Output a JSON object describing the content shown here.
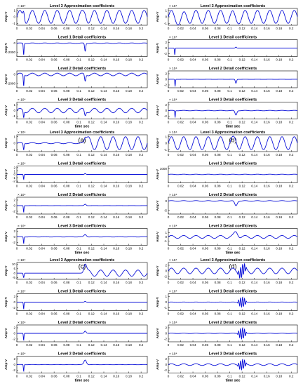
{
  "chart_data": [
    {
      "type": "line",
      "figure_label": "(a)",
      "xlabel": "time sec",
      "xlim": [
        0,
        0.21
      ],
      "xticks": [
        "0",
        "0.02",
        "0.04",
        "0.06",
        "0.08",
        "0.1",
        "0.12",
        "0.14",
        "0.16",
        "0.18",
        "0.2"
      ],
      "panels": [
        {
          "title": "Level 3 Approximation coefficients",
          "ylabel": "Amp-V",
          "exp": "× 10⁴",
          "yticks": [
            "1",
            "0",
            "-1"
          ],
          "ylim": [
            -1.3,
            1.3
          ],
          "series": [
            {
              "amp": 1.0,
              "cycles": 10.5,
              "offset": 0,
              "disturbances": [
                {
                  "t": 0.011,
                  "amp": 1.1,
                  "width": 0.0012
                },
                {
                  "t": 0.11,
                  "amp": 0.4,
                  "width": 0.002
                }
              ],
              "settle": null
            }
          ]
        },
        {
          "title": "Level 1 Detail coefficients",
          "ylabel": "Amp-V",
          "exp": "",
          "yticks": [
            "0",
            "-2000"
          ],
          "ylim": [
            -3000,
            800
          ],
          "series": [
            {
              "amp": 60,
              "cycles": 10.5,
              "offset": 0,
              "disturbances": [
                {
                  "t": 0.011,
                  "amp": -2600,
                  "width": 0.0006
                },
                {
                  "t": 0.11,
                  "amp": -1800,
                  "width": 0.0009
                }
              ],
              "settle": null
            }
          ]
        },
        {
          "title": "Level 2 Detail coefficients",
          "ylabel": "Amp-V",
          "exp": "",
          "yticks": [
            "0",
            "-2000"
          ],
          "ylim": [
            -3000,
            800
          ],
          "series": [
            {
              "amp": 300,
              "cycles": 10.5,
              "offset": 0,
              "disturbances": [
                {
                  "t": 0.011,
                  "amp": -2500,
                  "width": 0.0006
                },
                {
                  "t": 0.11,
                  "amp": -1500,
                  "width": 0.001
                }
              ],
              "settle": null
            }
          ]
        },
        {
          "title": "Level 3 Detail coefficients",
          "ylabel": "Amp-V",
          "exp": "× 10⁴",
          "yticks": [
            "1",
            "0",
            "-1"
          ],
          "ylim": [
            -1.5,
            1.5
          ],
          "series": [
            {
              "amp": 0.4,
              "cycles": 10.5,
              "offset": 0,
              "disturbances": [
                {
                  "t": 0.011,
                  "amp": -1.1,
                  "width": 0.0007
                },
                {
                  "t": 0.11,
                  "amp": -0.9,
                  "width": 0.0012
                }
              ],
              "settle": null
            }
          ]
        }
      ]
    },
    {
      "type": "line",
      "figure_label": "(b)",
      "xlabel": "time sec",
      "xlim": [
        0,
        0.21
      ],
      "xticks": [
        "0",
        "0.02",
        "0.04",
        "0.06",
        "0.08",
        "0.1",
        "0.12",
        "0.14",
        "0.16",
        "0.18",
        "0.2"
      ],
      "panels": [
        {
          "title": "Level 3 Approximation coefficients",
          "ylabel": "Amp-V",
          "exp": "× 10⁴",
          "yticks": [
            "1",
            "0",
            "-1"
          ],
          "ylim": [
            -1.3,
            1.3
          ],
          "series": [
            {
              "amp": 1.0,
              "cycles": 10.5,
              "offset": 0,
              "disturbances": [
                {
                  "t": 0.02,
                  "amp": -0.5,
                  "width": 0.004
                },
                {
                  "t": 0.11,
                  "amp": -0.3,
                  "width": 0.003
                }
              ],
              "settle": null
            }
          ]
        },
        {
          "title": "Level 1 Detail coefficients",
          "ylabel": "Amp-V",
          "exp": "× 10⁴",
          "yticks": [
            "2",
            "0",
            "-2"
          ],
          "ylim": [
            -3,
            3
          ],
          "series": [
            {
              "amp": 0.0,
              "cycles": 10.5,
              "offset": 0,
              "disturbances": [
                {
                  "t": 0.0105,
                  "amp": -2.4,
                  "width": 0.0005
                },
                {
                  "t": 0.11,
                  "amp": 0.35,
                  "width": 0.001
                }
              ],
              "settle": null
            }
          ]
        },
        {
          "title": "Level 2 Detail coefficients",
          "ylabel": "Amp-V",
          "exp": "× 10⁴",
          "yticks": [
            "2",
            "0",
            "-2"
          ],
          "ylim": [
            -3,
            3
          ],
          "series": [
            {
              "amp": 0.02,
              "cycles": 10.5,
              "offset": 0,
              "disturbances": [
                {
                  "t": 0.011,
                  "amp": -2.4,
                  "width": 0.0005
                },
                {
                  "t": 0.11,
                  "amp": -1.4,
                  "width": 0.001
                }
              ],
              "settle": null
            }
          ]
        },
        {
          "title": "Level 3 Detail coefficients",
          "ylabel": "Amp-V",
          "exp": "× 10⁴",
          "yticks": [
            "2",
            "0",
            "-2"
          ],
          "ylim": [
            -3,
            3
          ],
          "series": [
            {
              "amp": 0.08,
              "cycles": 10.5,
              "offset": 0,
              "disturbances": [
                {
                  "t": 0.011,
                  "amp": -2.3,
                  "width": 0.0005
                },
                {
                  "t": 0.11,
                  "amp": -1.6,
                  "width": 0.0015
                }
              ],
              "settle": null
            }
          ]
        }
      ]
    },
    {
      "type": "line",
      "figure_label": "(c)",
      "xlabel": "time sec",
      "xlim": [
        0,
        0.21
      ],
      "xticks": [
        "0",
        "0.02",
        "0.04",
        "0.06",
        "0.08",
        "0.1",
        "0.12",
        "0.14",
        "0.16",
        "0.18",
        "0.2"
      ],
      "panels": [
        {
          "title": "Level 3 Approximation coefficients",
          "ylabel": "Amp-V",
          "exp": "× 10⁴",
          "yticks": [
            "1",
            "0",
            "-1"
          ],
          "ylim": [
            -1.3,
            1.3
          ],
          "series": [
            {
              "amp": 0.08,
              "cycles": 10.5,
              "offset": 0,
              "disturbances": [
                {
                  "t": 0.011,
                  "amp": -1.0,
                  "width": 0.0007
                },
                {
                  "t": 0.11,
                  "amp": 0.8,
                  "width": 0.0015
                }
              ],
              "settle": {
                "start": 0.11,
                "amp": 1.0
              }
            }
          ]
        },
        {
          "title": "Level 1 Detail coefficients",
          "ylabel": "Amp-V",
          "exp": "× 10⁴",
          "yticks": [
            "2",
            "1",
            "0",
            "-1",
            "-2"
          ],
          "ylim": [
            -2.5,
            2.5
          ],
          "series": [
            {
              "amp": 0.0,
              "cycles": 10.5,
              "offset": 0,
              "disturbances": [
                {
                  "t": 0.011,
                  "amp": -1.5,
                  "width": 0.0005
                },
                {
                  "t": 0.11,
                  "amp": 0.25,
                  "width": 0.001
                }
              ],
              "settle": null
            }
          ]
        },
        {
          "title": "Level 2 Detail coefficients",
          "ylabel": "Amp-V",
          "exp": "× 10⁴",
          "yticks": [
            "2",
            "0",
            "-2"
          ],
          "ylim": [
            -3,
            3
          ],
          "series": [
            {
              "amp": 0.02,
              "cycles": 10.5,
              "offset": 0,
              "disturbances": [
                {
                  "t": 0.011,
                  "amp": -2.3,
                  "width": 0.0005
                },
                {
                  "t": 0.11,
                  "amp": 0.5,
                  "width": 0.0015
                }
              ],
              "settle": null
            }
          ]
        },
        {
          "title": "Level 3 Detail coefficients",
          "ylabel": "Amp-V",
          "exp": "× 10⁴",
          "yticks": [
            "2",
            "0",
            "-2"
          ],
          "ylim": [
            -3,
            3
          ],
          "series": [
            {
              "amp": 0.05,
              "cycles": 10.5,
              "offset": 0,
              "disturbances": [
                {
                  "t": 0.011,
                  "amp": -2.3,
                  "width": 0.0005
                },
                {
                  "t": 0.11,
                  "amp": 0.8,
                  "width": 0.002
                }
              ],
              "settle": null
            }
          ]
        }
      ]
    },
    {
      "type": "line",
      "figure_label": "(d)",
      "xlabel": "time sec",
      "xlim": [
        0,
        0.21
      ],
      "xticks": [
        "0",
        "0.02",
        "0.04",
        "0.06",
        "0.08",
        "0.1",
        "0.12",
        "0.14",
        "0.16",
        "0.18",
        "0.2"
      ],
      "panels": [
        {
          "title": "Level 3 Approximation coefficients",
          "ylabel": "Amp-V",
          "exp": "× 10⁴",
          "yticks": [
            "1",
            "0",
            "-1"
          ],
          "ylim": [
            -1.3,
            1.3
          ],
          "series": [
            {
              "amp": 1.0,
              "cycles": 10.5,
              "offset": 0,
              "disturbances": [
                {
                  "t": 0.11,
                  "amp": 0.3,
                  "width": 0.003
                }
              ],
              "settle": null
            }
          ]
        },
        {
          "title": "Level 1 Detail coefficients",
          "ylabel": "Amp-V",
          "exp": "",
          "yticks": [
            "1000"
          ],
          "ylim": [
            -1500,
            1500
          ],
          "series": [
            {
              "amp": 40,
              "cycles": 10.5,
              "offset": 0,
              "disturbances": [],
              "settle": null
            }
          ]
        },
        {
          "title": "Level 2 Detail coefficients",
          "ylabel": "Amp-V",
          "exp": "× 10⁴",
          "yticks": [
            "0",
            "-5"
          ],
          "ylim": [
            -7,
            2
          ],
          "series": [
            {
              "amp": 0.2,
              "cycles": 10.5,
              "offset": 0,
              "disturbances": [
                {
                  "t": 0.11,
                  "amp": -2.5,
                  "width": 0.002
                }
              ],
              "settle": null
            }
          ]
        },
        {
          "title": "Level 3 Detail coefficients",
          "ylabel": "Amp-V",
          "exp": "× 10⁴",
          "yticks": [
            "1",
            "0",
            "-1"
          ],
          "ylim": [
            -2,
            2
          ],
          "series": [
            {
              "amp": 0.35,
              "cycles": 10.5,
              "offset": 0,
              "disturbances": [
                {
                  "t": 0.11,
                  "amp": 1.2,
                  "width": 0.003
                }
              ],
              "settle": null
            }
          ]
        }
      ]
    },
    {
      "type": "line",
      "figure_label": "(e)",
      "xlabel": "time sec",
      "xlim": [
        0,
        0.21
      ],
      "xticks": [
        "0",
        "0.02",
        "0.04",
        "0.06",
        "0.08",
        "0.1",
        "0.12",
        "0.14",
        "0.16",
        "0.18",
        "0.2"
      ],
      "panels": [
        {
          "title": "Level 3 Approximation coefficients",
          "ylabel": "Amp-V",
          "exp": "× 10⁴",
          "yticks": [
            "10",
            "5",
            "0",
            "-5"
          ],
          "ylim": [
            -7,
            12
          ],
          "series": [
            {
              "amp": 0.0,
              "cycles": 10.5,
              "offset": 0,
              "disturbances": [
                {
                  "t": 0.011,
                  "amp": -5,
                  "width": 0.0007
                },
                {
                  "t": 0.11,
                  "amp": 10,
                  "width": 0.002
                }
              ],
              "settle": {
                "start": 0.11,
                "amp": 3.5
              }
            }
          ]
        },
        {
          "title": "Level 1 Detail coefficients",
          "ylabel": "Amp-V",
          "exp": "× 10⁴",
          "yticks": [
            "2",
            "0",
            "-2"
          ],
          "ylim": [
            -3,
            3
          ],
          "series": [
            {
              "amp": 0.0,
              "cycles": 10.5,
              "offset": 0,
              "disturbances": [
                {
                  "t": 0.011,
                  "amp": -2.4,
                  "width": 0.0005
                },
                {
                  "t": 0.11,
                  "amp": 0.3,
                  "width": 0.001
                }
              ],
              "settle": null
            }
          ]
        },
        {
          "title": "Level 2 Detail coefficients",
          "ylabel": "Amp-V",
          "exp": "× 10⁴",
          "yticks": [
            "2",
            "0",
            "-2"
          ],
          "ylim": [
            -3,
            3
          ],
          "series": [
            {
              "amp": 0.0,
              "cycles": 10.5,
              "offset": 0,
              "disturbances": [
                {
                  "t": 0.011,
                  "amp": -2.4,
                  "width": 0.0005
                },
                {
                  "t": 0.11,
                  "amp": 0.8,
                  "width": 0.0015
                }
              ],
              "settle": null
            }
          ]
        },
        {
          "title": "Level 3 Detail coefficients",
          "ylabel": "Amp-V",
          "exp": "× 10⁴",
          "yticks": [
            "2",
            "0",
            "-2"
          ],
          "ylim": [
            -3,
            3
          ],
          "series": [
            {
              "amp": 0.05,
              "cycles": 10.5,
              "offset": 0,
              "disturbances": [
                {
                  "t": 0.011,
                  "amp": -2.3,
                  "width": 0.0005
                },
                {
                  "t": 0.11,
                  "amp": 1.6,
                  "width": 0.002
                }
              ],
              "settle": null
            }
          ]
        }
      ]
    },
    {
      "type": "line",
      "figure_label": "(f)",
      "xlabel": "time sec",
      "xlim": [
        0,
        0.21
      ],
      "xticks": [
        "0",
        "0.02",
        "0.04",
        "0.06",
        "0.08",
        "0.1",
        "0.12",
        "0.14",
        "0.16",
        "0.18",
        "0.2"
      ],
      "panels": [
        {
          "title": "Level 3 Approximation coefficients",
          "ylabel": "Amp-V",
          "exp": "× 10⁴",
          "yticks": [
            "2",
            "0",
            "-2"
          ],
          "ylim": [
            -3,
            3
          ],
          "series": [
            {
              "amp": 1.0,
              "cycles": 10.5,
              "offset": 0,
              "disturbances": [
                {
                  "t": 0.12,
                  "amp": 2.2,
                  "width": 0.008,
                  "burst": true
                }
              ],
              "settle": null
            }
          ]
        },
        {
          "title": "Level 1 Detail coefficients",
          "ylabel": "Amp-V",
          "exp": "× 10⁴",
          "yticks": [
            "1",
            "0",
            "-1"
          ],
          "ylim": [
            -1.5,
            1.5
          ],
          "series": [
            {
              "amp": 0.02,
              "cycles": 10.5,
              "offset": 0,
              "disturbances": [
                {
                  "t": 0.12,
                  "amp": 0.9,
                  "width": 0.008,
                  "burst": true
                }
              ],
              "settle": null
            }
          ]
        },
        {
          "title": "Level 2 Detail coefficients",
          "ylabel": "Amp-V",
          "exp": "× 10⁴",
          "yticks": [
            "2",
            "0",
            "-2"
          ],
          "ylim": [
            -3,
            3
          ],
          "series": [
            {
              "amp": 0.05,
              "cycles": 10.5,
              "offset": 0,
              "disturbances": [
                {
                  "t": 0.12,
                  "amp": 2.0,
                  "width": 0.008,
                  "burst": true
                }
              ],
              "settle": null
            }
          ]
        },
        {
          "title": "Level 3 Detail coefficients",
          "ylabel": "Amp-V",
          "exp": "× 10⁴",
          "yticks": [
            "2",
            "0",
            "-2"
          ],
          "ylim": [
            -3,
            3
          ],
          "series": [
            {
              "amp": 0.3,
              "cycles": 10.5,
              "offset": 0,
              "disturbances": [
                {
                  "t": 0.12,
                  "amp": 1.8,
                  "width": 0.008,
                  "burst": true
                }
              ],
              "settle": null
            }
          ]
        }
      ]
    }
  ],
  "colors": {
    "line": "#0a10d8",
    "axis": "#000000",
    "text": "#000000"
  }
}
